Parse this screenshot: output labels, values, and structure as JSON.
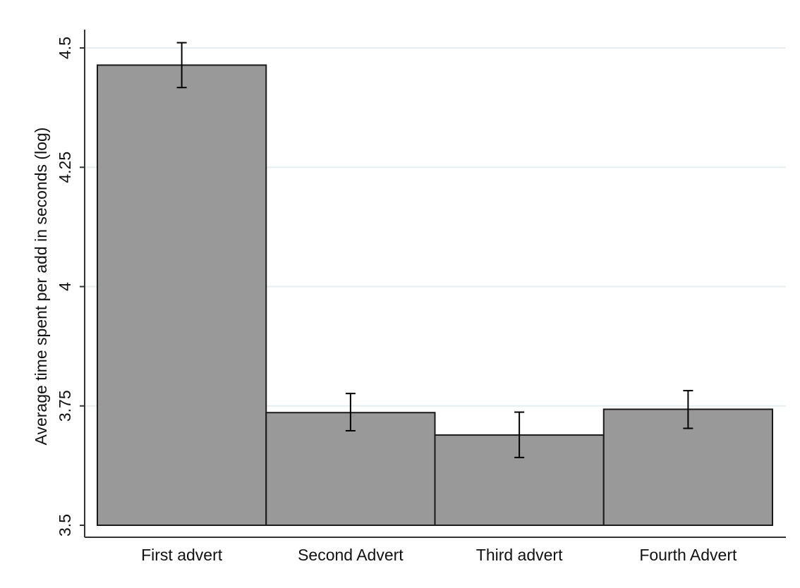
{
  "chart_data": {
    "type": "bar",
    "title": "",
    "xlabel": "",
    "ylabel": "Average time spent per add in seconds (log)",
    "categories": [
      "First advert",
      "Second Advert",
      "Third advert",
      "Fourth Advert"
    ],
    "values": [
      4.464,
      3.736,
      3.689,
      3.743
    ],
    "error_bars": {
      "lower": [
        4.417,
        3.698,
        3.642,
        3.703
      ],
      "upper": [
        4.511,
        3.776,
        3.737,
        3.782
      ]
    },
    "ylim": [
      3.5,
      4.5
    ],
    "yticks": [
      3.5,
      3.75,
      4,
      4.25,
      4.5
    ],
    "ytick_labels": [
      "3.5",
      "3.75",
      "4",
      "4.25",
      "4.5"
    ],
    "grid": true,
    "colors": {
      "bar_fill": "#999999",
      "bar_stroke": "#1a1a1a",
      "grid": "#e7eef1",
      "axis": "#333333",
      "error_bar": "#000000"
    }
  }
}
